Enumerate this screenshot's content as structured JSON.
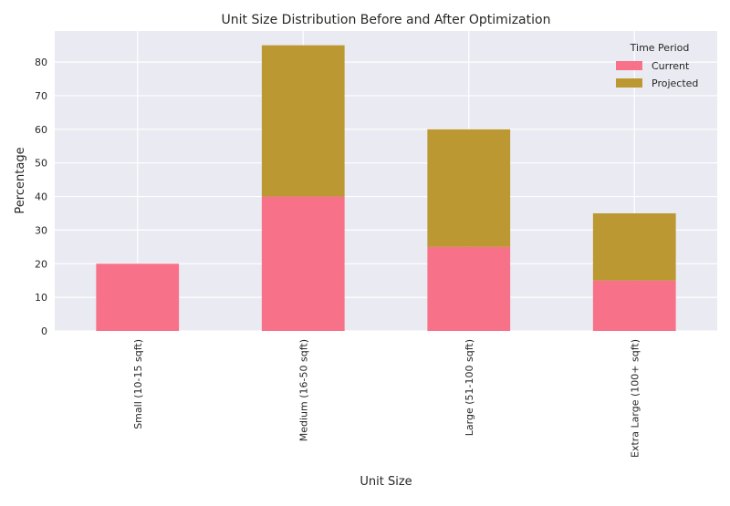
{
  "chart_data": {
    "type": "bar",
    "stacked": true,
    "title": "Unit Size Distribution Before and After Optimization",
    "xlabel": "Unit Size",
    "ylabel": "Percentage",
    "categories": [
      "Small (10-15 sqft)",
      "Medium (16-50 sqft)",
      "Large (51-100 sqft)",
      "Extra Large (100+ sqft)"
    ],
    "series": [
      {
        "name": "Current",
        "values": [
          20,
          40,
          25,
          15
        ],
        "color": "#f77189"
      },
      {
        "name": "Projected",
        "values": [
          0,
          45,
          35,
          20
        ],
        "color": "#bb9832"
      }
    ],
    "ylim": [
      0,
      89.25
    ],
    "yticks": [
      0,
      10,
      20,
      30,
      40,
      50,
      60,
      70,
      80
    ],
    "grid": true,
    "legend": {
      "title": "Time Period",
      "position": "top-right"
    },
    "colors": {
      "plot_background": "#eaeaf2",
      "grid": "#ffffff",
      "text": "#262626"
    }
  }
}
